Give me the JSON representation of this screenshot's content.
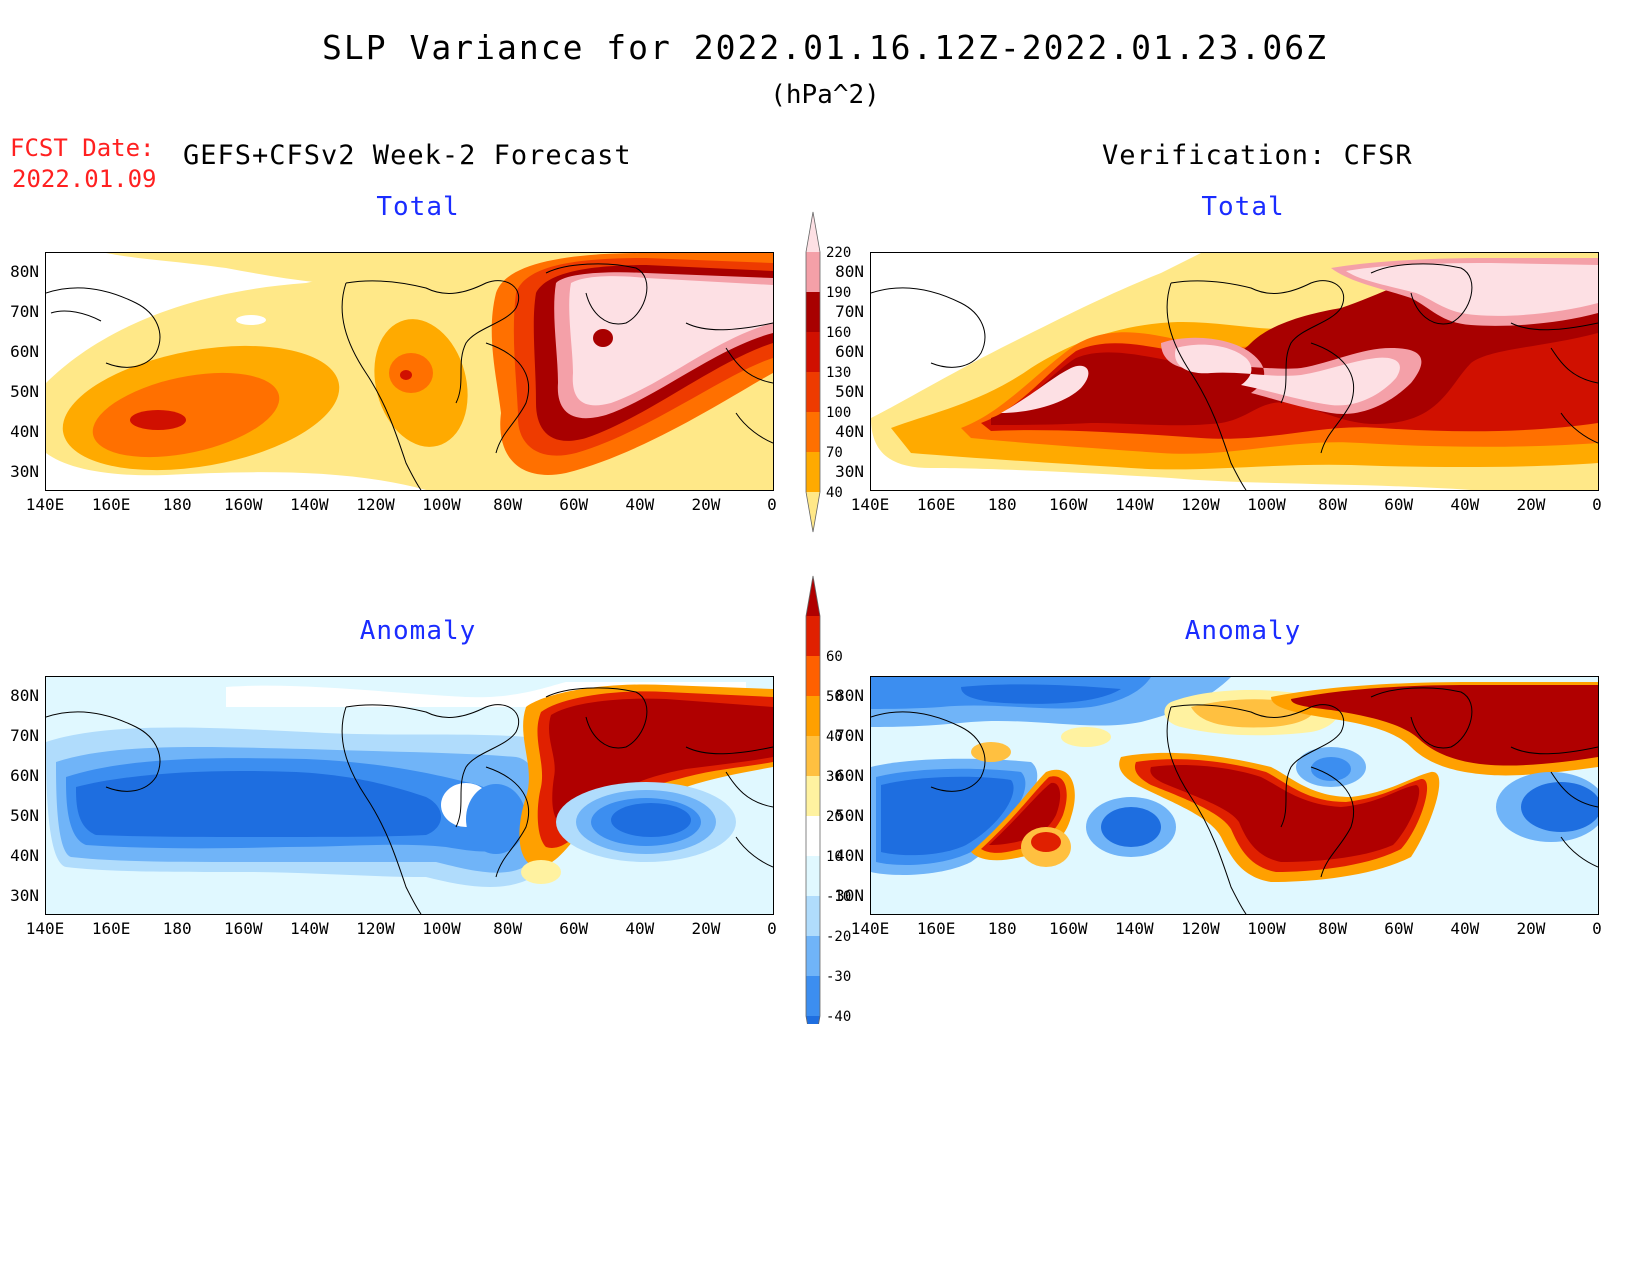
{
  "header": {
    "title": "SLP Variance for 2022.01.16.12Z-2022.01.23.06Z",
    "units": "(hPa^2)",
    "fcst_label": "FCST Date:",
    "fcst_date": "2022.01.09",
    "left_heading": "GEFS+CFSv2 Week-2 Forecast",
    "right_heading": "Verification: CFSR"
  },
  "panels": {
    "forecast_total_title": "Total",
    "verification_total_title": "Total",
    "forecast_anomaly_title": "Anomaly",
    "verification_anomaly_title": "Anomaly"
  },
  "axes": {
    "lat_labels": [
      "80N",
      "70N",
      "60N",
      "50N",
      "40N",
      "30N"
    ],
    "lon_labels": [
      "140E",
      "160E",
      "180",
      "160W",
      "140W",
      "120W",
      "100W",
      "80W",
      "60W",
      "40W",
      "20W",
      "0"
    ]
  },
  "colorbars": {
    "total": {
      "levels": [
        "40",
        "70",
        "100",
        "130",
        "160",
        "190",
        "220"
      ],
      "colors": [
        "#ffe888",
        "#ffaa00",
        "#ff7000",
        "#ee3b00",
        "#d01000",
        "#a80000",
        "#f4a0a8",
        "#fde0e4"
      ]
    },
    "anomaly": {
      "levels": [
        "-40",
        "-30",
        "-20",
        "-10",
        "10",
        "20",
        "30",
        "40",
        "50",
        "60"
      ],
      "colors": [
        "#1e6ee0",
        "#3c8ef0",
        "#70b4f8",
        "#b0dcfc",
        "#e0f8ff",
        "#ffffff",
        "#fff2a0",
        "#ffc040",
        "#ffa000",
        "#ff6000",
        "#e02000",
        "#b00000"
      ]
    }
  }
}
